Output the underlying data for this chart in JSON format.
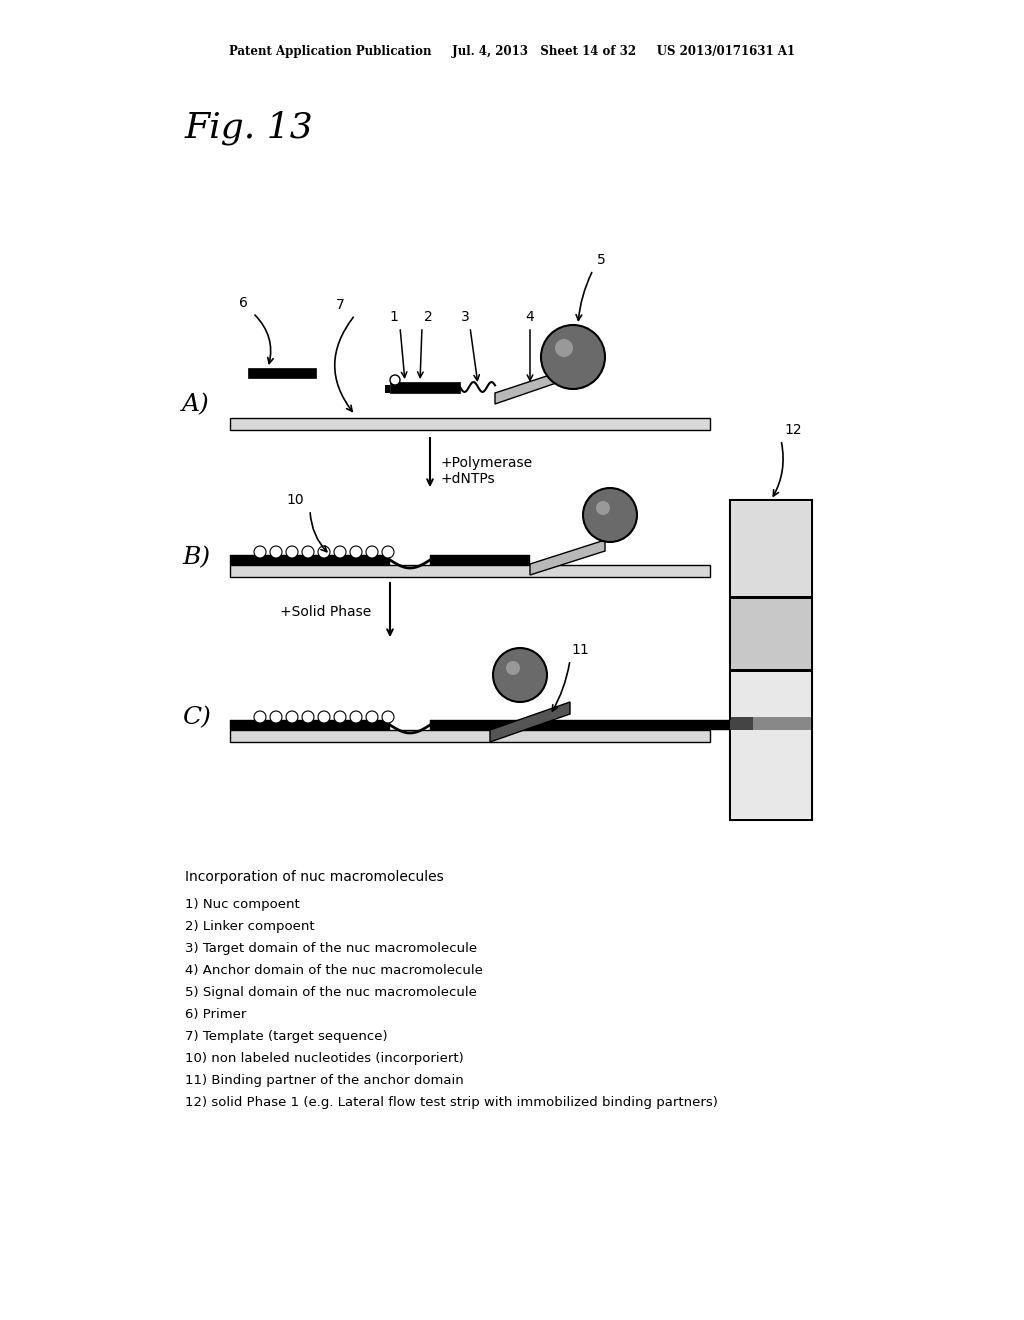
{
  "bg_color": "#ffffff",
  "header_text": "Patent Application Publication     Jul. 4, 2013   Sheet 14 of 32     US 2013/0171631 A1",
  "fig_label": "Fig. 13",
  "panel_A_label": "A)",
  "panel_B_label": "B)",
  "panel_C_label": "C)",
  "legend_title": "Incorporation of nuc macromolecules",
  "legend_items": [
    "1) Nuc compoent",
    "2) Linker compoent",
    "3) Target domain of the nuc macromolecule",
    "4) Anchor domain of the nuc macromolecule",
    "5) Signal domain of the nuc macromolecule",
    "6) Primer",
    "7) Template (target sequence)",
    "10) non labeled nucleotides (incorporiert)",
    "11) Binding partner of the anchor domain",
    "12) solid Phase 1 (e.g. Lateral flow test strip with immobilized binding partners)"
  ],
  "colors": {
    "black": "#000000",
    "dark_gray": "#555555",
    "medium_gray": "#888888",
    "light_gray": "#cccccc",
    "very_light_gray": "#e8e8e8",
    "white": "#ffffff"
  }
}
